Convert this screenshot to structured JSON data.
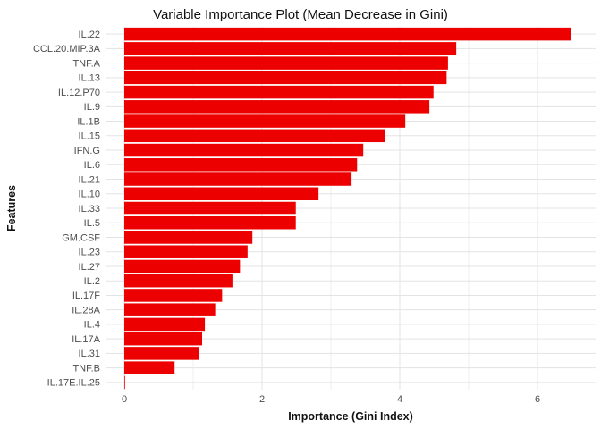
{
  "chart_data": {
    "type": "bar",
    "orientation": "horizontal",
    "title": "Variable Importance Plot (Mean Decrease in Gini)",
    "xlabel": "Importance (Gini Index)",
    "ylabel": "Features",
    "categories": [
      "IL.22",
      "CCL.20.MIP.3A",
      "TNF.A",
      "IL.13",
      "IL.12.P70",
      "IL.9",
      "IL.1B",
      "IL.15",
      "IFN.G",
      "IL.6",
      "IL.21",
      "IL.10",
      "IL.33",
      "IL.5",
      "GM.CSF",
      "IL.23",
      "IL.27",
      "IL.2",
      "IL.17F",
      "IL.28A",
      "IL.4",
      "IL.17A",
      "IL.31",
      "TNF.B",
      "IL.17E.IL.25"
    ],
    "values": [
      6.49,
      4.82,
      4.7,
      4.68,
      4.49,
      4.43,
      4.08,
      3.79,
      3.47,
      3.38,
      3.3,
      2.82,
      2.49,
      2.49,
      1.86,
      1.79,
      1.68,
      1.57,
      1.42,
      1.32,
      1.17,
      1.13,
      1.09,
      0.73,
      0.01
    ],
    "xlim": [
      0,
      6.85
    ],
    "x_ticks": [
      0,
      2,
      4,
      6
    ],
    "x_tick_labels": [
      "0",
      "2",
      "4",
      "6"
    ],
    "x_minor_ticks": [
      1,
      3,
      5
    ],
    "grid": true,
    "legend_position": "none",
    "colors": {
      "bar": "#EC0000",
      "major_grid": "#E3E3E3",
      "minor_grid": "#EFEFEF",
      "axis_text": "#4D4D4D",
      "title_text": "#111111",
      "background": "#FFFFFF"
    }
  }
}
